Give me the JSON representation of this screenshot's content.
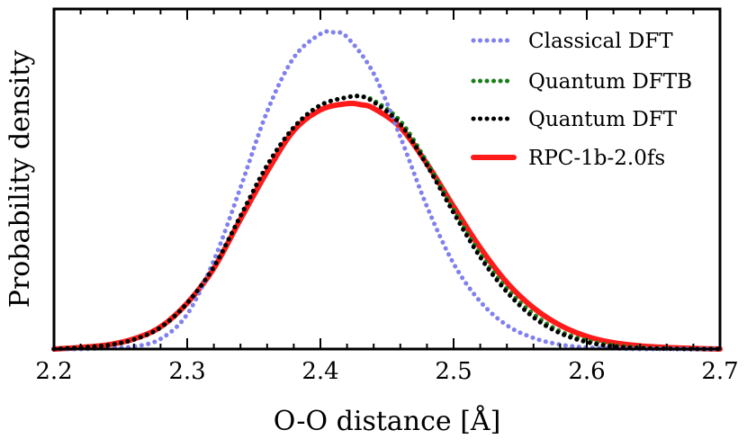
{
  "chart_data": {
    "type": "line",
    "title": "",
    "xlabel": "O-O distance [Å]",
    "ylabel": "Probability density",
    "xlim": [
      2.2,
      2.7
    ],
    "ylim": [
      0,
      1.0
    ],
    "xticks": [
      "2.2",
      "2.3",
      "2.4",
      "2.5",
      "2.6",
      "2.7"
    ],
    "legend_position": "top-right",
    "series": [
      {
        "name": "Classical DFT",
        "color": "#8080ee",
        "style": "dotted",
        "x": [
          2.2,
          2.22,
          2.24,
          2.26,
          2.28,
          2.3,
          2.32,
          2.34,
          2.36,
          2.38,
          2.4,
          2.41,
          2.42,
          2.44,
          2.46,
          2.48,
          2.5,
          2.52,
          2.54,
          2.56,
          2.58,
          2.6,
          2.62,
          2.64,
          2.66,
          2.68,
          2.7
        ],
        "y": [
          0.0,
          0.0,
          0.003,
          0.008,
          0.032,
          0.11,
          0.28,
          0.51,
          0.75,
          0.92,
          0.995,
          1.0,
          0.985,
          0.87,
          0.67,
          0.45,
          0.27,
          0.15,
          0.075,
          0.035,
          0.014,
          0.005,
          0.002,
          0.0,
          0.0,
          0.0,
          0.0
        ]
      },
      {
        "name": "Quantum DFTB",
        "color": "#1a7f1a",
        "style": "dotted",
        "x": [
          2.2,
          2.22,
          2.24,
          2.26,
          2.28,
          2.3,
          2.32,
          2.34,
          2.36,
          2.38,
          2.4,
          2.42,
          2.43,
          2.44,
          2.46,
          2.48,
          2.5,
          2.52,
          2.54,
          2.56,
          2.58,
          2.6,
          2.62,
          2.64,
          2.66,
          2.68,
          2.7
        ],
        "y": [
          0.0,
          0.005,
          0.012,
          0.03,
          0.068,
          0.145,
          0.26,
          0.42,
          0.58,
          0.7,
          0.77,
          0.795,
          0.798,
          0.785,
          0.72,
          0.59,
          0.44,
          0.3,
          0.19,
          0.11,
          0.056,
          0.027,
          0.012,
          0.005,
          0.002,
          0.0,
          0.0
        ]
      },
      {
        "name": "Quantum DFT",
        "color": "#000000",
        "style": "dotted",
        "x": [
          2.2,
          2.22,
          2.24,
          2.26,
          2.28,
          2.3,
          2.32,
          2.34,
          2.36,
          2.38,
          2.4,
          2.42,
          2.43,
          2.44,
          2.46,
          2.48,
          2.5,
          2.52,
          2.54,
          2.56,
          2.58,
          2.6,
          2.62,
          2.64,
          2.66,
          2.68,
          2.7
        ],
        "y": [
          0.0,
          0.005,
          0.012,
          0.03,
          0.068,
          0.145,
          0.26,
          0.42,
          0.58,
          0.7,
          0.77,
          0.795,
          0.798,
          0.78,
          0.71,
          0.58,
          0.43,
          0.29,
          0.18,
          0.1,
          0.05,
          0.022,
          0.008,
          0.003,
          0.001,
          0.0,
          0.0
        ]
      },
      {
        "name": "RPC-1b-2.0fs",
        "color": "#ff1a1a",
        "style": "solid",
        "x": [
          2.2,
          2.22,
          2.24,
          2.26,
          2.28,
          2.3,
          2.32,
          2.34,
          2.36,
          2.38,
          2.4,
          2.42,
          2.43,
          2.44,
          2.46,
          2.48,
          2.5,
          2.52,
          2.54,
          2.56,
          2.58,
          2.6,
          2.62,
          2.64,
          2.66,
          2.68,
          2.7
        ],
        "y": [
          0.0,
          0.005,
          0.013,
          0.032,
          0.07,
          0.145,
          0.255,
          0.41,
          0.56,
          0.69,
          0.755,
          0.775,
          0.772,
          0.76,
          0.7,
          0.585,
          0.45,
          0.32,
          0.21,
          0.13,
          0.075,
          0.04,
          0.02,
          0.01,
          0.005,
          0.002,
          0.0
        ]
      }
    ]
  }
}
